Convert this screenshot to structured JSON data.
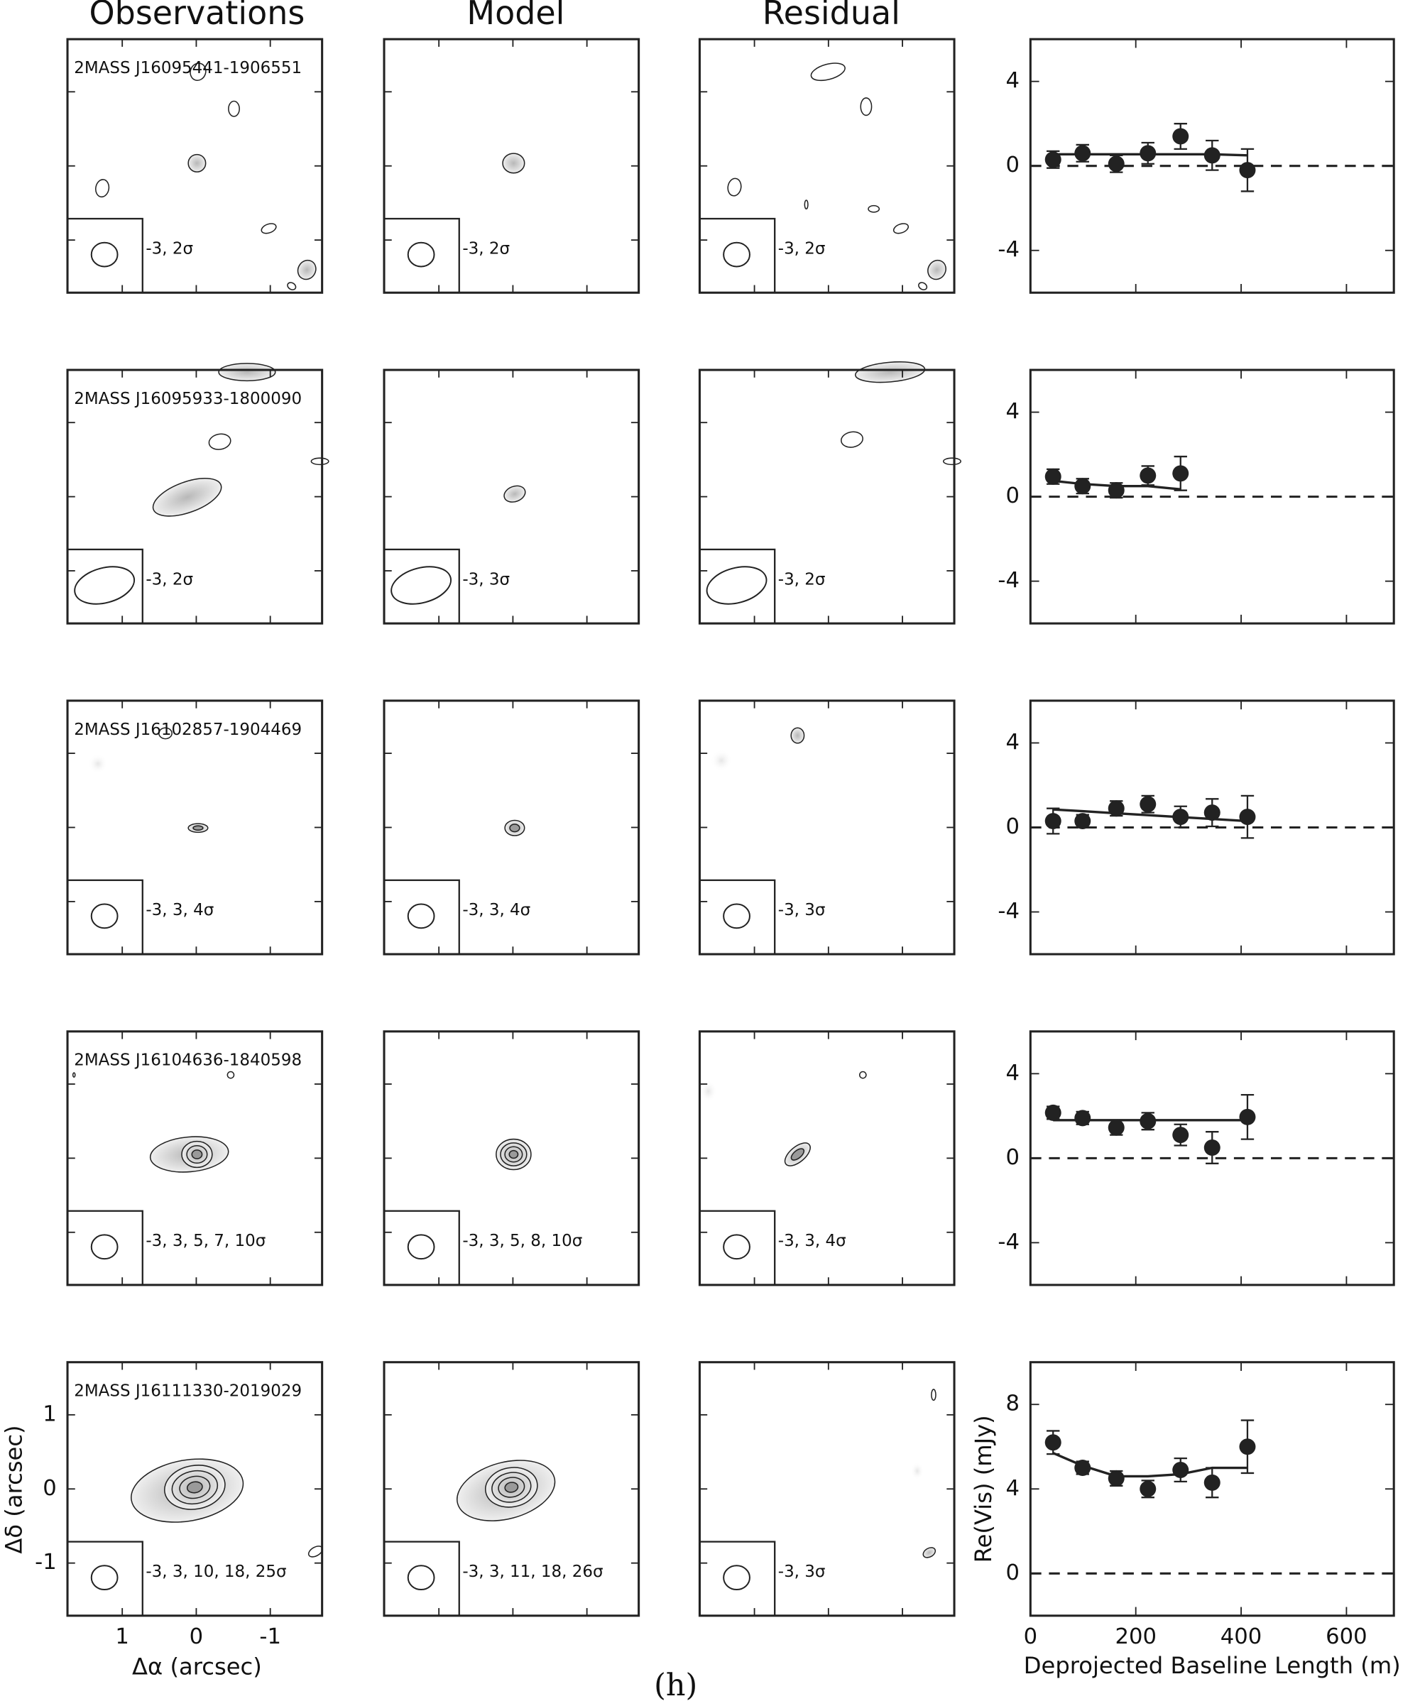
{
  "column_titles": [
    "Observations",
    "Model",
    "Residual"
  ],
  "caption": "(h)",
  "map_axes": {
    "xlabel": "Δα (arcsec)",
    "ylabel": "Δδ (arcsec)",
    "xlim": [
      1.74,
      -1.7
    ],
    "ylim": [
      -1.71,
      1.71
    ],
    "xticks": [
      1,
      0,
      -1
    ],
    "yticks": [
      -1,
      0,
      1
    ]
  },
  "rows": [
    {
      "source": "2MASS J16095441-1906551",
      "contour_levels": [
        "-3, 2σ",
        "-3, 2σ",
        "-3, 2σ"
      ]
    },
    {
      "source": "2MASS J16095933-1800090",
      "contour_levels": [
        "-3, 2σ",
        "-3, 3σ",
        "-3, 2σ"
      ]
    },
    {
      "source": "2MASS J16102857-1904469",
      "contour_levels": [
        "-3, 3, 4σ",
        "-3, 3, 4σ",
        "-3, 3σ"
      ]
    },
    {
      "source": "2MASS J16104636-1840598",
      "contour_levels": [
        "-3, 3, 5, 7, 10σ",
        "-3, 3, 5, 8, 10σ",
        "-3, 3, 4σ"
      ]
    },
    {
      "source": "2MASS J16111330-2019029",
      "contour_levels": [
        "-3, 3, 10, 18, 25σ",
        "-3, 3, 11, 18, 26σ",
        "-3, 3σ"
      ]
    }
  ],
  "chart_data": [
    {
      "type": "scatter",
      "x": [
        43,
        99,
        163,
        223,
        285,
        345,
        412
      ],
      "values": [
        0.3,
        0.6,
        0.1,
        0.6,
        1.4,
        0.5,
        -0.2
      ],
      "errors": [
        0.4,
        0.4,
        0.4,
        0.5,
        0.6,
        0.7,
        1.0
      ],
      "model": [
        0.55,
        0.55,
        0.55,
        0.55,
        0.55,
        0.55,
        0.5
      ],
      "color": "#222222",
      "xlim": [
        0,
        690
      ],
      "ylim": [
        -6,
        6
      ],
      "xticks": [
        0,
        200,
        400,
        600
      ],
      "yticks": [
        -4,
        0,
        4
      ],
      "hline": 0
    },
    {
      "type": "scatter",
      "x": [
        43,
        99,
        163,
        223,
        285
      ],
      "values": [
        0.95,
        0.5,
        0.3,
        1.0,
        1.1
      ],
      "errors": [
        0.35,
        0.35,
        0.35,
        0.45,
        0.8
      ],
      "model": [
        0.75,
        0.6,
        0.5,
        0.5,
        0.35
      ],
      "color": "#222222",
      "xlim": [
        0,
        690
      ],
      "ylim": [
        -6,
        6
      ],
      "xticks": [
        0,
        200,
        400,
        600
      ],
      "yticks": [
        -4,
        0,
        4
      ],
      "hline": 0
    },
    {
      "type": "scatter",
      "x": [
        43,
        99,
        163,
        223,
        285,
        345,
        412
      ],
      "values": [
        0.3,
        0.3,
        0.9,
        1.1,
        0.5,
        0.7,
        0.5
      ],
      "errors": [
        0.6,
        0.3,
        0.35,
        0.4,
        0.5,
        0.65,
        1.0
      ],
      "model": [
        0.85,
        0.77,
        0.67,
        0.58,
        0.49,
        0.4,
        0.3
      ],
      "color": "#222222",
      "xlim": [
        0,
        690
      ],
      "ylim": [
        -6,
        6
      ],
      "xticks": [
        0,
        200,
        400,
        600
      ],
      "yticks": [
        -4,
        0,
        4
      ],
      "hline": 0
    },
    {
      "type": "scatter",
      "x": [
        43,
        99,
        163,
        223,
        285,
        345,
        412
      ],
      "values": [
        2.15,
        1.9,
        1.45,
        1.75,
        1.1,
        0.5,
        1.95
      ],
      "errors": [
        0.3,
        0.3,
        0.35,
        0.4,
        0.5,
        0.75,
        1.05
      ],
      "model": [
        1.8,
        1.8,
        1.8,
        1.8,
        1.8,
        1.8,
        1.8
      ],
      "color": "#222222",
      "xlim": [
        0,
        690
      ],
      "ylim": [
        -6,
        6
      ],
      "xticks": [
        0,
        200,
        400,
        600
      ],
      "yticks": [
        -4,
        0,
        4
      ],
      "hline": 0
    },
    {
      "type": "scatter",
      "x": [
        43,
        99,
        163,
        223,
        285,
        345,
        412
      ],
      "values": [
        6.2,
        5.0,
        4.5,
        4.0,
        4.9,
        4.3,
        6.0
      ],
      "errors": [
        0.55,
        0.3,
        0.35,
        0.4,
        0.55,
        0.7,
        1.25
      ],
      "model": [
        5.7,
        5.1,
        4.6,
        4.6,
        4.7,
        5.0,
        5.0
      ],
      "color": "#222222",
      "xlim": [
        0,
        690
      ],
      "ylim": [
        -2,
        10
      ],
      "xticks": [
        0,
        200,
        400,
        600
      ],
      "yticks": [
        0,
        4,
        8
      ],
      "hline": 0,
      "xlabel": "Deprojected Baseline Length (m)",
      "ylabel": "Re(Vis) (mJy)"
    }
  ]
}
